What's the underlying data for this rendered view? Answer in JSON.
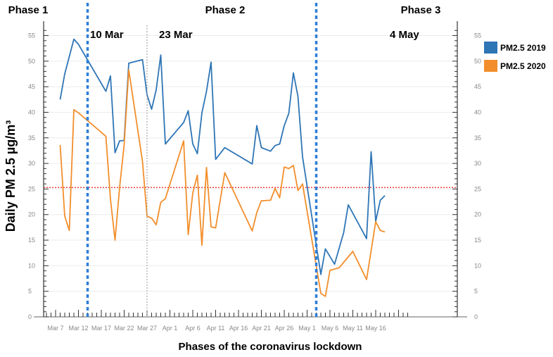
{
  "chart_data": {
    "type": "line",
    "xlabel": "Phases of the coronavirus lockdown",
    "ylabel": "Daily PM 2.5 µg/m³",
    "ylim": [
      0,
      57
    ],
    "yticks": [
      0,
      5,
      10,
      15,
      20,
      25,
      30,
      35,
      40,
      45,
      50,
      55
    ],
    "x_tick_labels": [
      "Mar 7",
      "Mar 12",
      "Mar 17",
      "Mar 22",
      "Mar 27",
      "Apr 1",
      "Apr 6",
      "Apr 11",
      "Apr 16",
      "Apr 21",
      "Apr 26",
      "May 1",
      "May 6",
      "May 11",
      "May 16"
    ],
    "x_range_days": [
      0,
      82
    ],
    "threshold": {
      "value": 25.3,
      "color": "#e8201c"
    },
    "phases": [
      {
        "label": "Phase 1",
        "boundary_day": 12
      },
      {
        "label": "Phase 2",
        "boundary_day": 62
      },
      {
        "label": "Phase 3"
      }
    ],
    "dates": [
      {
        "label": "10 Mar",
        "day": 12
      },
      {
        "label": "23 Mar",
        "day": 25
      },
      {
        "label": "4 May",
        "day": 62
      }
    ],
    "series": [
      {
        "name": "PM2.5 2019",
        "color": "#2e75b6",
        "points": [
          [
            6,
            42.5
          ],
          [
            7,
            47.5
          ],
          [
            9,
            54.3
          ],
          [
            10,
            53.3
          ],
          [
            16,
            44.1
          ],
          [
            17,
            47.1
          ],
          [
            18,
            32.1
          ],
          [
            19,
            34.4
          ],
          [
            20,
            34.5
          ],
          [
            21,
            49.6
          ],
          [
            24,
            50.3
          ],
          [
            25,
            43.4
          ],
          [
            26,
            40.6
          ],
          [
            27,
            44.4
          ],
          [
            28,
            51.2
          ],
          [
            29,
            33.8
          ],
          [
            33,
            38.0
          ],
          [
            34,
            40.3
          ],
          [
            35,
            33.8
          ],
          [
            36,
            31.9
          ],
          [
            37,
            39.9
          ],
          [
            38,
            44.1
          ],
          [
            39,
            49.8
          ],
          [
            40,
            30.8
          ],
          [
            42,
            33.1
          ],
          [
            48,
            29.9
          ],
          [
            49,
            37.4
          ],
          [
            50,
            33.1
          ],
          [
            52,
            32.4
          ],
          [
            53,
            33.5
          ],
          [
            54,
            33.8
          ],
          [
            55,
            37.4
          ],
          [
            56,
            39.8
          ],
          [
            57,
            47.7
          ],
          [
            58,
            43.1
          ],
          [
            59,
            31.3
          ],
          [
            63,
            8.3
          ],
          [
            64,
            13.3
          ],
          [
            66,
            10.3
          ],
          [
            68,
            16.5
          ],
          [
            69,
            21.9
          ],
          [
            73,
            15.3
          ],
          [
            74,
            32.3
          ],
          [
            75,
            18.7
          ],
          [
            76,
            22.8
          ],
          [
            77,
            23.7
          ]
        ]
      },
      {
        "name": "PM2.5 2020",
        "color": "#f28e2b",
        "points": [
          [
            6,
            33.6
          ],
          [
            7,
            19.7
          ],
          [
            8,
            16.9
          ],
          [
            9,
            40.5
          ],
          [
            10,
            39.9
          ],
          [
            16,
            35.3
          ],
          [
            17,
            23.0
          ],
          [
            18,
            15.0
          ],
          [
            19,
            25.3
          ],
          [
            20,
            33.7
          ],
          [
            21,
            48.3
          ],
          [
            24,
            30.4
          ],
          [
            25,
            19.7
          ],
          [
            26,
            19.3
          ],
          [
            27,
            18.0
          ],
          [
            28,
            22.4
          ],
          [
            29,
            23.1
          ],
          [
            33,
            34.4
          ],
          [
            34,
            16.1
          ],
          [
            35,
            24.2
          ],
          [
            36,
            27.7
          ],
          [
            37,
            14.0
          ],
          [
            38,
            29.2
          ],
          [
            39,
            17.6
          ],
          [
            40,
            17.4
          ],
          [
            42,
            28.2
          ],
          [
            48,
            16.8
          ],
          [
            49,
            20.4
          ],
          [
            50,
            22.7
          ],
          [
            52,
            22.8
          ],
          [
            53,
            25.1
          ],
          [
            54,
            23.3
          ],
          [
            55,
            29.3
          ],
          [
            56,
            29.0
          ],
          [
            57,
            29.6
          ],
          [
            58,
            24.7
          ],
          [
            59,
            26.0
          ],
          [
            63,
            4.6
          ],
          [
            64,
            4.0
          ],
          [
            65,
            9.1
          ],
          [
            67,
            9.6
          ],
          [
            70,
            12.8
          ],
          [
            73,
            7.3
          ],
          [
            75,
            18.6
          ],
          [
            76,
            16.9
          ],
          [
            77,
            16.6
          ]
        ]
      }
    ],
    "legend": {
      "placement": "right"
    },
    "grid": true
  }
}
